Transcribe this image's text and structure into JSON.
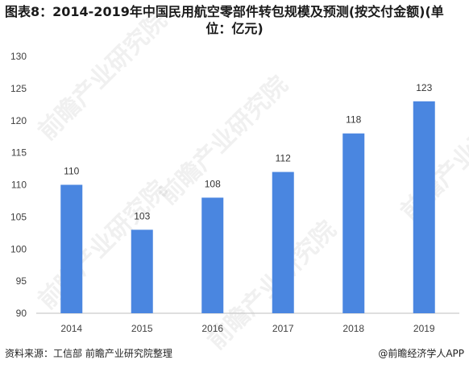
{
  "title": {
    "line1": "图表8：2014-2019年中国民用航空零部件转包规模及预测(按交付金额)(单",
    "line2": "位：亿元)"
  },
  "footer": {
    "source": "资料来源：工信部 前瞻产业研究院整理",
    "brand": "@前瞻经济学人APP"
  },
  "watermark": "前瞻产业研究院",
  "colors": {
    "bar": "#4a86e0",
    "axis": "#bfbfbf",
    "text": "#404040"
  },
  "chart_data": {
    "type": "bar",
    "categories": [
      "2014",
      "2015",
      "2016",
      "2017",
      "2018",
      "2019"
    ],
    "values": [
      110,
      103,
      108,
      112,
      118,
      123
    ],
    "ylim": [
      90,
      130
    ],
    "yticks": [
      90,
      95,
      100,
      105,
      110,
      115,
      120,
      125,
      130
    ],
    "grid": false,
    "xlabel": "",
    "ylabel": ""
  }
}
